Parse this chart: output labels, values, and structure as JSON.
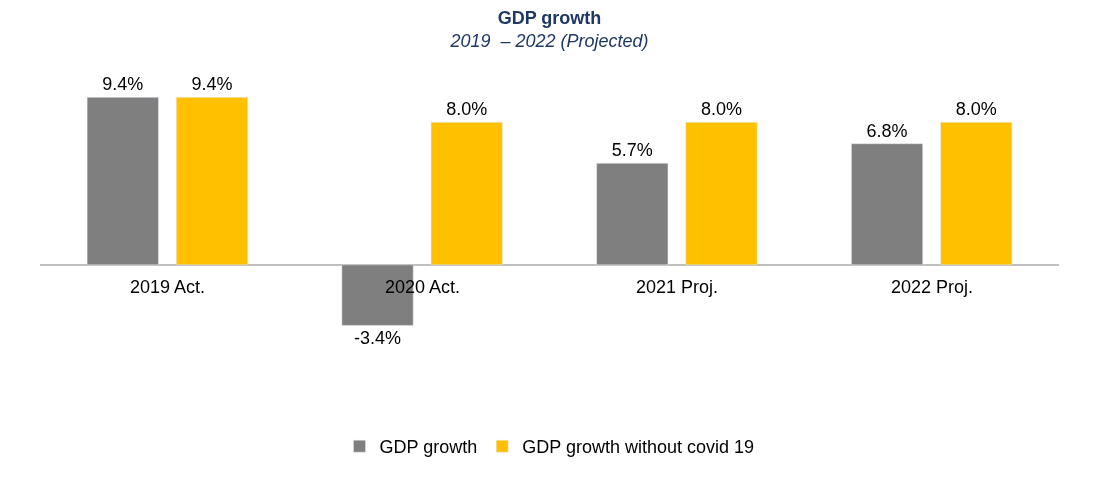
{
  "chart_data": {
    "type": "bar",
    "title": "GDP growth",
    "subtitle": "2019  – 2022 (Projected)",
    "categories": [
      "2019 Act.",
      "2020 Act.",
      "2021 Proj.",
      "2022 Proj."
    ],
    "series": [
      {
        "name": "GDP growth",
        "color": "#7f7f7f",
        "values": [
          9.4,
          -3.4,
          5.7,
          6.8
        ],
        "value_labels": [
          "9.4%",
          "-3.4%",
          "5.7%",
          "6.8%"
        ]
      },
      {
        "name": "GDP growth without covid 19",
        "color": "#ffc000",
        "values": [
          9.4,
          8.0,
          8.0,
          8.0
        ],
        "value_labels": [
          "9.4%",
          "8.0%",
          "8.0%",
          "8.0%"
        ]
      }
    ],
    "legend": "bottom"
  }
}
